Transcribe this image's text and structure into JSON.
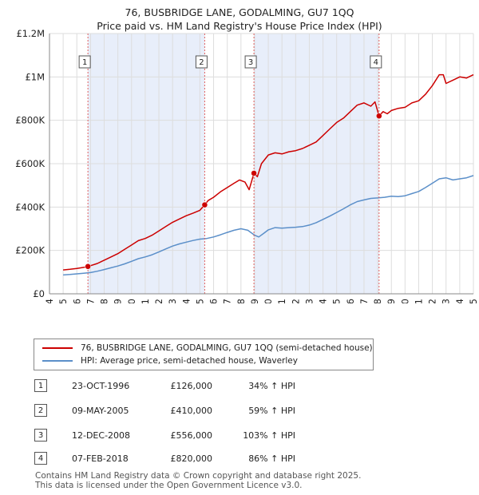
{
  "title_line1": "76, BUSBRIDGE LANE, GODALMING, GU7 1QQ",
  "title_line2": "Price paid vs. HM Land Registry's House Price Index (HPI)",
  "legend": {
    "property_label": "76, BUSBRIDGE LANE, GODALMING, GU7 1QQ (semi-detached house)",
    "hpi_label": "HPI: Average price, semi-detached house, Waverley"
  },
  "colors": {
    "property": "#cc0000",
    "hpi": "#5b8fc9",
    "shade": "#e8eefa",
    "grid": "#dddddd"
  },
  "transactions": [
    {
      "num": "1",
      "date": "23-OCT-1996",
      "price": "£126,000",
      "hpi_change": "34% ↑ HPI"
    },
    {
      "num": "2",
      "date": "09-MAY-2005",
      "price": "£410,000",
      "hpi_change": "59% ↑ HPI"
    },
    {
      "num": "3",
      "date": "12-DEC-2008",
      "price": "£556,000",
      "hpi_change": "103% ↑ HPI"
    },
    {
      "num": "4",
      "date": "07-FEB-2018",
      "price": "£820,000",
      "hpi_change": "86% ↑ HPI"
    }
  ],
  "footer_line1": "Contains HM Land Registry data © Crown copyright and database right 2025.",
  "footer_line2": "This data is licensed under the Open Government Licence v3.0.",
  "chart_data": {
    "type": "line",
    "title": "76, BUSBRIDGE LANE, GODALMING, GU7 1QQ",
    "subtitle": "Price paid vs. HM Land Registry's House Price Index (HPI)",
    "xlabel": "",
    "ylabel": "",
    "xlim": [
      1994,
      2025
    ],
    "ylim": [
      0,
      1200000
    ],
    "x_ticks": [
      1994,
      1995,
      1996,
      1997,
      1998,
      1999,
      2000,
      2001,
      2002,
      2003,
      2004,
      2005,
      2006,
      2007,
      2008,
      2009,
      2010,
      2011,
      2012,
      2013,
      2014,
      2015,
      2016,
      2017,
      2018,
      2019,
      2020,
      2021,
      2022,
      2023,
      2024,
      2025
    ],
    "y_ticks": [
      {
        "value": 0,
        "label": "£0"
      },
      {
        "value": 200000,
        "label": "£200K"
      },
      {
        "value": 400000,
        "label": "£400K"
      },
      {
        "value": 600000,
        "label": "£600K"
      },
      {
        "value": 800000,
        "label": "£800K"
      },
      {
        "value": 1000000,
        "label": "£1M"
      },
      {
        "value": 1200000,
        "label": "£1.2M"
      }
    ],
    "grid": true,
    "legend_position": "bottom",
    "shaded_periods": [
      [
        1996.81,
        2005.35
      ],
      [
        2008.95,
        2018.1
      ]
    ],
    "sales": [
      {
        "label": "1",
        "x": 1996.81,
        "y": 126000
      },
      {
        "label": "2",
        "x": 2005.35,
        "y": 410000
      },
      {
        "label": "3",
        "x": 2008.95,
        "y": 556000
      },
      {
        "label": "4",
        "x": 2018.1,
        "y": 820000
      }
    ],
    "series": [
      {
        "name": "76, BUSBRIDGE LANE, GODALMING, GU7 1QQ (semi-detached house)",
        "color": "#cc0000",
        "x": [
          1995.0,
          1995.5,
          1996.0,
          1996.5,
          1996.81,
          1997.5,
          1998.0,
          1998.5,
          1999.0,
          1999.5,
          2000.0,
          2000.5,
          2001.0,
          2001.5,
          2002.0,
          2002.5,
          2003.0,
          2003.5,
          2004.0,
          2004.5,
          2005.0,
          2005.35,
          2005.6,
          2006.0,
          2006.5,
          2007.0,
          2007.5,
          2007.9,
          2008.3,
          2008.6,
          2008.95,
          2009.2,
          2009.5,
          2010.0,
          2010.5,
          2011.0,
          2011.5,
          2012.0,
          2012.5,
          2013.0,
          2013.5,
          2014.0,
          2014.5,
          2015.0,
          2015.5,
          2016.0,
          2016.5,
          2017.0,
          2017.5,
          2017.8,
          2018.1,
          2018.4,
          2018.7,
          2019.0,
          2019.5,
          2020.0,
          2020.5,
          2021.0,
          2021.5,
          2022.0,
          2022.5,
          2022.8,
          2023.0,
          2023.5,
          2024.0,
          2024.5,
          2025.0
        ],
        "y": [
          110000,
          113000,
          117000,
          122000,
          126000,
          140000,
          155000,
          170000,
          185000,
          205000,
          225000,
          245000,
          255000,
          270000,
          290000,
          310000,
          330000,
          345000,
          360000,
          372000,
          385000,
          410000,
          430000,
          445000,
          470000,
          490000,
          510000,
          525000,
          515000,
          480000,
          556000,
          540000,
          600000,
          640000,
          650000,
          645000,
          655000,
          660000,
          670000,
          685000,
          700000,
          730000,
          760000,
          790000,
          810000,
          840000,
          870000,
          880000,
          865000,
          885000,
          820000,
          840000,
          830000,
          845000,
          855000,
          860000,
          880000,
          890000,
          920000,
          960000,
          1010000,
          1010000,
          970000,
          985000,
          1000000,
          995000,
          1010000
        ]
      },
      {
        "name": "HPI: Average price, semi-detached house, Waverley",
        "color": "#5b8fc9",
        "x": [
          1995.0,
          1995.5,
          1996.0,
          1996.5,
          1997.0,
          1997.5,
          1998.0,
          1998.5,
          1999.0,
          1999.5,
          2000.0,
          2000.5,
          2001.0,
          2001.5,
          2002.0,
          2002.5,
          2003.0,
          2003.5,
          2004.0,
          2004.5,
          2005.0,
          2005.5,
          2006.0,
          2006.5,
          2007.0,
          2007.5,
          2008.0,
          2008.5,
          2009.0,
          2009.3,
          2009.7,
          2010.0,
          2010.5,
          2011.0,
          2011.5,
          2012.0,
          2012.5,
          2013.0,
          2013.5,
          2014.0,
          2014.5,
          2015.0,
          2015.5,
          2016.0,
          2016.5,
          2017.0,
          2017.5,
          2018.0,
          2018.5,
          2019.0,
          2019.5,
          2020.0,
          2020.5,
          2021.0,
          2021.5,
          2022.0,
          2022.5,
          2023.0,
          2023.5,
          2024.0,
          2024.5,
          2025.0
        ],
        "y": [
          87000,
          89000,
          92000,
          95000,
          98000,
          104000,
          112000,
          120000,
          128000,
          138000,
          150000,
          162000,
          170000,
          180000,
          193000,
          207000,
          220000,
          230000,
          238000,
          246000,
          252000,
          255000,
          262000,
          272000,
          283000,
          293000,
          300000,
          293000,
          270000,
          262000,
          280000,
          295000,
          305000,
          303000,
          305000,
          307000,
          310000,
          317000,
          328000,
          343000,
          358000,
          375000,
          392000,
          410000,
          425000,
          433000,
          440000,
          442000,
          445000,
          450000,
          448000,
          452000,
          462000,
          472000,
          490000,
          510000,
          530000,
          535000,
          525000,
          530000,
          535000,
          545000
        ]
      }
    ]
  }
}
